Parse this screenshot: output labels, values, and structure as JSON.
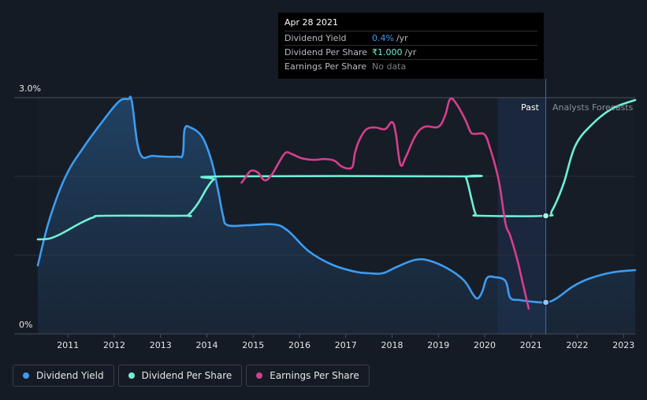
{
  "tooltip": {
    "date": "Apr 28 2021",
    "rows": [
      {
        "label": "Dividend Yield",
        "value": "0.4%",
        "unit": "/yr"
      },
      {
        "label": "Dividend Per Share",
        "value": "₹1.000",
        "unit": "/yr"
      },
      {
        "label": "Earnings Per Share",
        "value": "No data",
        "unit": ""
      }
    ]
  },
  "labels": {
    "past": "Past",
    "forecast": "Analysts Forecasts"
  },
  "legend": [
    {
      "label": "Dividend Yield",
      "color": "#3e9cf0"
    },
    {
      "label": "Dividend Per Share",
      "color": "#6ff0d6"
    },
    {
      "label": "Earnings Per Share",
      "color": "#d63f8c"
    }
  ],
  "chart_data": {
    "type": "line",
    "x_ticks": [
      "2011",
      "2012",
      "2013",
      "2014",
      "2015",
      "2016",
      "2017",
      "2018",
      "2019",
      "2020",
      "2021",
      "2022",
      "2023"
    ],
    "xlim": [
      2010.35,
      2023.25
    ],
    "y_ticks": [
      "3.0%",
      "0%"
    ],
    "ylim": [
      0,
      3.0
    ],
    "y_unit": "%",
    "past_region": [
      2020.28,
      2021.32
    ],
    "highlight_x": 2021.32,
    "series": [
      {
        "name": "Dividend Yield",
        "color": "#3e9cf0",
        "area": true,
        "points": [
          [
            2010.35,
            0.87
          ],
          [
            2010.6,
            1.45
          ],
          [
            2010.95,
            2.0
          ],
          [
            2011.35,
            2.38
          ],
          [
            2011.75,
            2.7
          ],
          [
            2012.1,
            2.95
          ],
          [
            2012.3,
            2.98
          ],
          [
            2012.38,
            2.95
          ],
          [
            2012.55,
            2.3
          ],
          [
            2012.85,
            2.26
          ],
          [
            2013.35,
            2.25
          ],
          [
            2013.48,
            2.28
          ],
          [
            2013.52,
            2.6
          ],
          [
            2013.65,
            2.62
          ],
          [
            2013.9,
            2.5
          ],
          [
            2014.1,
            2.2
          ],
          [
            2014.25,
            1.8
          ],
          [
            2014.35,
            1.5
          ],
          [
            2014.45,
            1.38
          ],
          [
            2014.9,
            1.38
          ],
          [
            2015.45,
            1.39
          ],
          [
            2015.75,
            1.31
          ],
          [
            2016.2,
            1.05
          ],
          [
            2016.7,
            0.88
          ],
          [
            2017.2,
            0.79
          ],
          [
            2017.5,
            0.77
          ],
          [
            2017.8,
            0.77
          ],
          [
            2018.1,
            0.85
          ],
          [
            2018.5,
            0.94
          ],
          [
            2018.8,
            0.93
          ],
          [
            2019.2,
            0.83
          ],
          [
            2019.55,
            0.68
          ],
          [
            2019.75,
            0.5
          ],
          [
            2019.85,
            0.45
          ],
          [
            2019.95,
            0.54
          ],
          [
            2020.05,
            0.71
          ],
          [
            2020.22,
            0.72
          ],
          [
            2020.45,
            0.67
          ],
          [
            2020.55,
            0.46
          ],
          [
            2020.75,
            0.43
          ],
          [
            2021.0,
            0.41
          ],
          [
            2021.32,
            0.4
          ],
          [
            2021.55,
            0.45
          ],
          [
            2021.9,
            0.6
          ],
          [
            2022.25,
            0.7
          ],
          [
            2022.75,
            0.78
          ],
          [
            2023.25,
            0.81
          ]
        ]
      },
      {
        "name": "Dividend Per Share",
        "color": "#6ff0d6",
        "area": false,
        "points": [
          [
            2010.35,
            1.2
          ],
          [
            2010.6,
            1.21
          ],
          [
            2010.85,
            1.27
          ],
          [
            2011.25,
            1.4
          ],
          [
            2011.55,
            1.48
          ],
          [
            2011.8,
            1.5
          ],
          [
            2013.5,
            1.5
          ],
          [
            2013.6,
            1.51
          ],
          [
            2013.8,
            1.65
          ],
          [
            2014.0,
            1.85
          ],
          [
            2014.15,
            1.96
          ],
          [
            2014.35,
            2.0
          ],
          [
            2019.5,
            2.0
          ],
          [
            2019.6,
            1.98
          ],
          [
            2019.72,
            1.7
          ],
          [
            2019.8,
            1.53
          ],
          [
            2019.9,
            1.5
          ],
          [
            2021.32,
            1.5
          ],
          [
            2021.45,
            1.56
          ],
          [
            2021.7,
            1.9
          ],
          [
            2021.95,
            2.38
          ],
          [
            2022.3,
            2.65
          ],
          [
            2022.75,
            2.86
          ],
          [
            2023.25,
            2.97
          ]
        ]
      },
      {
        "name": "Earnings Per Share",
        "color": "#d63f8c",
        "area": false,
        "points": [
          [
            2014.75,
            1.92
          ],
          [
            2014.85,
            2.0
          ],
          [
            2014.95,
            2.07
          ],
          [
            2015.1,
            2.05
          ],
          [
            2015.25,
            1.95
          ],
          [
            2015.4,
            2.02
          ],
          [
            2015.55,
            2.17
          ],
          [
            2015.7,
            2.3
          ],
          [
            2015.85,
            2.28
          ],
          [
            2016.05,
            2.23
          ],
          [
            2016.3,
            2.21
          ],
          [
            2016.55,
            2.22
          ],
          [
            2016.75,
            2.2
          ],
          [
            2016.9,
            2.13
          ],
          [
            2017.05,
            2.1
          ],
          [
            2017.15,
            2.13
          ],
          [
            2017.2,
            2.3
          ],
          [
            2017.3,
            2.47
          ],
          [
            2017.45,
            2.6
          ],
          [
            2017.65,
            2.62
          ],
          [
            2017.85,
            2.6
          ],
          [
            2018.0,
            2.69
          ],
          [
            2018.08,
            2.55
          ],
          [
            2018.18,
            2.15
          ],
          [
            2018.3,
            2.25
          ],
          [
            2018.5,
            2.51
          ],
          [
            2018.7,
            2.63
          ],
          [
            2019.0,
            2.63
          ],
          [
            2019.15,
            2.78
          ],
          [
            2019.25,
            2.98
          ],
          [
            2019.38,
            2.93
          ],
          [
            2019.58,
            2.72
          ],
          [
            2019.7,
            2.56
          ],
          [
            2019.8,
            2.54
          ],
          [
            2020.0,
            2.53
          ],
          [
            2020.12,
            2.35
          ],
          [
            2020.22,
            2.15
          ],
          [
            2020.32,
            1.9
          ],
          [
            2020.45,
            1.4
          ],
          [
            2020.55,
            1.25
          ],
          [
            2020.7,
            0.95
          ],
          [
            2020.82,
            0.65
          ],
          [
            2020.95,
            0.32
          ]
        ]
      }
    ]
  }
}
